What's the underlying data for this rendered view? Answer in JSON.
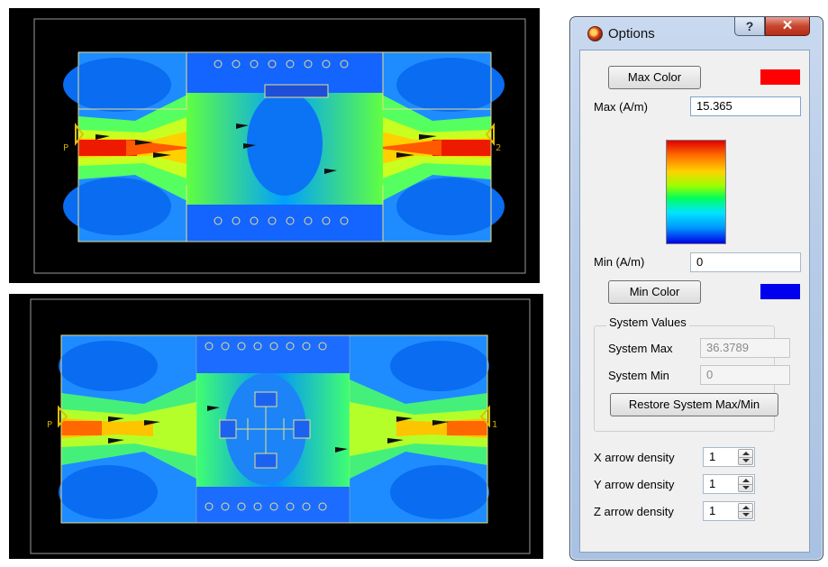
{
  "panels": [
    {
      "name": "field-view-top",
      "port_left": "P",
      "port_right": "2"
    },
    {
      "name": "field-view-bottom",
      "port_left": "P",
      "port_right": "1"
    }
  ],
  "colors": {
    "max_color": "#ff0000",
    "min_color": "#0000ee",
    "background": "#000000",
    "outline": "#e8e08a"
  },
  "dialog": {
    "title": "Options",
    "help_label": "?",
    "close_label": "✕",
    "max_color_label": "Max Color",
    "max_label": "Max (A/m)",
    "max_value": "15.365",
    "min_label": "Min (A/m)",
    "min_value": "0",
    "min_color_label": "Min Color",
    "system_values": {
      "title": "System Values",
      "max_label": "System Max",
      "max_value": "36.3789",
      "min_label": "System Min",
      "min_value": "0",
      "restore_label": "Restore System Max/Min"
    },
    "density": [
      {
        "label": "X arrow density",
        "value": "1"
      },
      {
        "label": "Y arrow density",
        "value": "1"
      },
      {
        "label": "Z arrow density",
        "value": "1"
      }
    ]
  }
}
